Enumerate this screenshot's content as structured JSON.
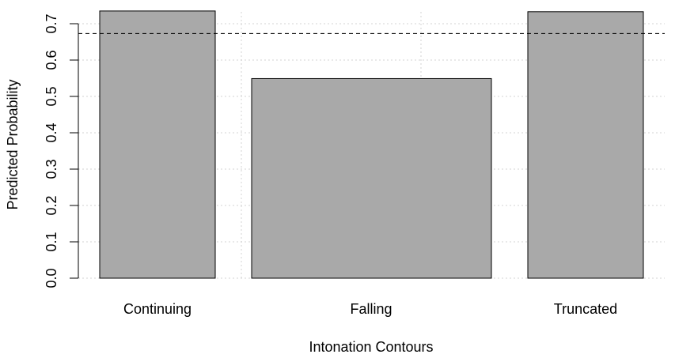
{
  "chart_data": {
    "type": "bar",
    "title": "",
    "xlabel": "Intonation Contours",
    "ylabel": "Predicted Probability",
    "categories": [
      "Continuing",
      "Falling",
      "Truncated"
    ],
    "values": [
      0.735,
      0.549,
      0.733
    ],
    "reference_line": 0.673,
    "ylim": [
      0,
      0.74
    ],
    "yticks": [
      {
        "value": 0.0,
        "label": "0.0"
      },
      {
        "value": 0.1,
        "label": "0.1"
      },
      {
        "value": 0.2,
        "label": "0.2"
      },
      {
        "value": 0.3,
        "label": "0.3"
      },
      {
        "value": 0.4,
        "label": "0.4"
      },
      {
        "value": 0.5,
        "label": "0.5"
      },
      {
        "value": 0.6,
        "label": "0.6"
      },
      {
        "value": 0.7,
        "label": "0.7"
      }
    ],
    "grid": true,
    "bar_color": "#a9a9a9",
    "grid_color": "#d3d3d3"
  }
}
